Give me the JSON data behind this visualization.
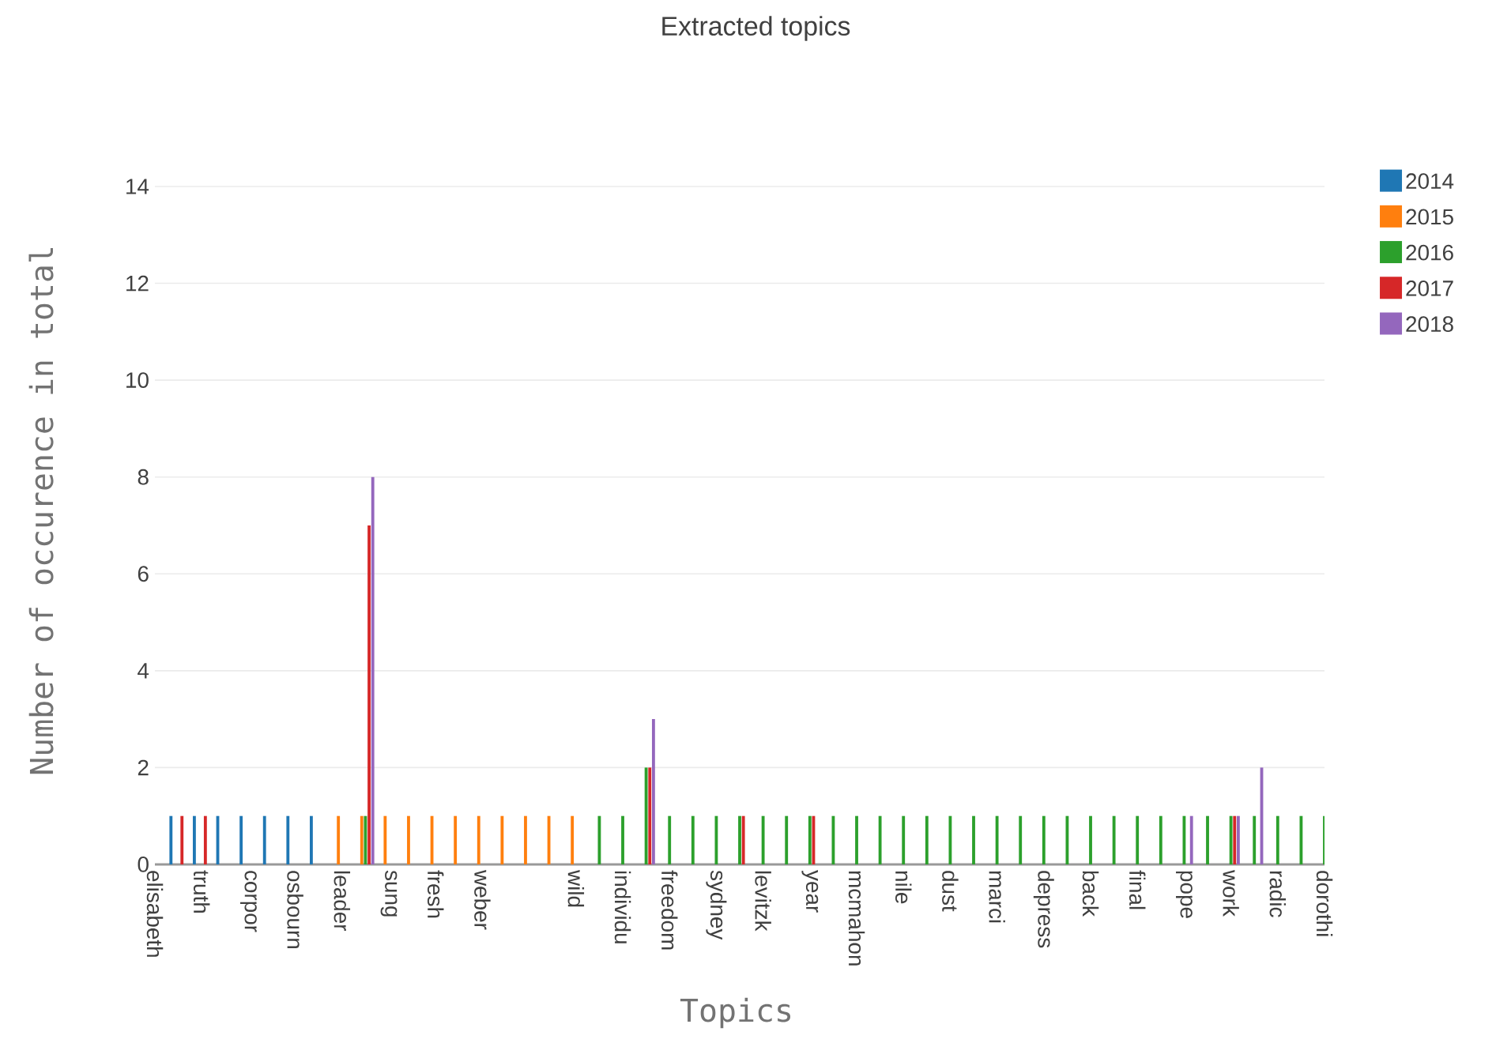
{
  "chart_data": {
    "type": "bar",
    "title": "Extracted topics",
    "xlabel": "Topics",
    "ylabel": "Number of occurence in total",
    "categories": [
      "elisabeth",
      null,
      "truth",
      null,
      "corpor",
      null,
      "osbourn",
      null,
      "leader",
      null,
      "sung",
      null,
      "fresh",
      null,
      "weber",
      null,
      null,
      null,
      "wild",
      null,
      "individu",
      null,
      "freedom",
      null,
      "sydney",
      null,
      "levitzk",
      null,
      "year",
      null,
      "mcmahon",
      null,
      "nile",
      null,
      "dust",
      null,
      "marci",
      null,
      "depress",
      null,
      "back",
      null,
      "final",
      null,
      "pope",
      null,
      "work",
      null,
      "radic",
      null,
      "dorothi"
    ],
    "series": [
      {
        "name": "2014",
        "color": "#1f77b4",
        "values": [
          null,
          1,
          1,
          1,
          1,
          1,
          1,
          1,
          null,
          null,
          null,
          null,
          null,
          null,
          null,
          null,
          null,
          null,
          null,
          null,
          null,
          null,
          null,
          null,
          null,
          null,
          null,
          null,
          null,
          null,
          null,
          null,
          null,
          null,
          null,
          null,
          null,
          null,
          null,
          null,
          null,
          null,
          null,
          null,
          null,
          null,
          null,
          null,
          null,
          null,
          null
        ]
      },
      {
        "name": "2015",
        "color": "#ff7f0e",
        "values": [
          null,
          null,
          null,
          null,
          null,
          null,
          null,
          null,
          1,
          1,
          1,
          1,
          1,
          1,
          1,
          1,
          1,
          1,
          1,
          null,
          null,
          null,
          null,
          null,
          null,
          null,
          null,
          null,
          null,
          null,
          null,
          null,
          null,
          null,
          null,
          null,
          null,
          null,
          null,
          null,
          null,
          null,
          null,
          null,
          null,
          null,
          null,
          null,
          null,
          null,
          null
        ]
      },
      {
        "name": "2016",
        "color": "#2ca02c",
        "values": [
          null,
          null,
          null,
          null,
          null,
          null,
          null,
          null,
          null,
          1,
          null,
          null,
          null,
          null,
          null,
          null,
          null,
          null,
          null,
          1,
          1,
          2,
          1,
          1,
          1,
          1,
          1,
          1,
          1,
          1,
          1,
          1,
          1,
          1,
          1,
          1,
          1,
          1,
          1,
          1,
          1,
          1,
          1,
          1,
          1,
          1,
          1,
          1,
          1,
          1,
          1
        ]
      },
      {
        "name": "2017",
        "color": "#d62728",
        "values": [
          null,
          1,
          1,
          null,
          null,
          null,
          null,
          null,
          null,
          7,
          null,
          null,
          null,
          null,
          null,
          null,
          null,
          null,
          null,
          null,
          null,
          2,
          null,
          null,
          null,
          1,
          null,
          null,
          1,
          null,
          null,
          null,
          null,
          null,
          null,
          null,
          null,
          null,
          null,
          null,
          null,
          null,
          null,
          null,
          null,
          null,
          1,
          null,
          null,
          null,
          null
        ]
      },
      {
        "name": "2018",
        "color": "#9467bd",
        "values": [
          null,
          null,
          null,
          null,
          null,
          null,
          null,
          null,
          null,
          8,
          null,
          null,
          null,
          null,
          null,
          null,
          null,
          null,
          null,
          null,
          null,
          3,
          null,
          null,
          null,
          null,
          null,
          null,
          null,
          null,
          null,
          null,
          null,
          null,
          null,
          null,
          null,
          null,
          null,
          null,
          null,
          null,
          null,
          null,
          1,
          null,
          1,
          2,
          null,
          null,
          null
        ]
      }
    ],
    "ylim": [
      0,
      14
    ],
    "yticks": [
      0,
      2,
      4,
      6,
      8,
      10,
      12,
      14
    ],
    "grid": "y",
    "legend": "top right"
  }
}
